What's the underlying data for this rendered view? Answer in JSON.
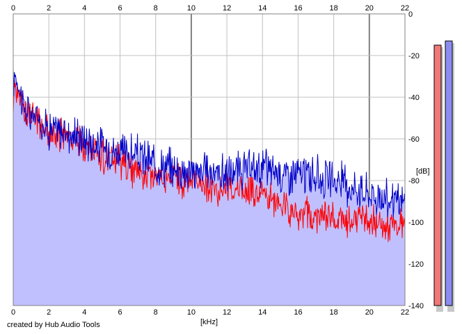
{
  "chart_data": {
    "type": "area",
    "credit": "created by Hub Audio Tools",
    "xlabel": "[kHz]",
    "ylabel": "[dB]",
    "xlim": [
      0,
      22
    ],
    "ylim": [
      -140,
      0
    ],
    "x_ticks": [
      "0",
      "2",
      "4",
      "6",
      "8",
      "10",
      "12",
      "14",
      "16",
      "18",
      "20",
      "22"
    ],
    "y_ticks": [
      "0",
      "-20",
      "-40",
      "-60",
      "-80",
      "-100",
      "-120",
      "-140"
    ],
    "grid": true,
    "colors": {
      "fill": "#c0c0ff",
      "blue_line": "#0000c8",
      "red_line": "#ff0000",
      "grid": "#c0c0c0",
      "major_grid": "#808080",
      "meter_left": "#f07878",
      "meter_right": "#8c8cf0"
    },
    "series": [
      {
        "color": "blue",
        "x": [
          0.0,
          0.1,
          0.3,
          0.6,
          1.0,
          1.3,
          1.6,
          2.0,
          2.5,
          3.0,
          3.5,
          4.0,
          4.5,
          5.0,
          5.5,
          6.0,
          6.5,
          7.0,
          7.5,
          8.0,
          8.5,
          9.0,
          9.5,
          10.0,
          10.5,
          11.0,
          11.5,
          12.0,
          12.5,
          13.0,
          13.5,
          14.0,
          14.5,
          15.0,
          15.5,
          16.0,
          16.5,
          17.0,
          17.5,
          18.0,
          18.5,
          19.0,
          19.5,
          20.0,
          20.5,
          21.0,
          21.5,
          22.0
        ],
        "values": [
          -35,
          -28,
          -33,
          -45,
          -50,
          -48,
          -52,
          -55,
          -56,
          -57,
          -58,
          -60,
          -62,
          -63,
          -65,
          -66,
          -67,
          -68,
          -70,
          -72,
          -73,
          -74,
          -75,
          -76,
          -76,
          -75,
          -76,
          -77,
          -76,
          -75,
          -75,
          -73,
          -75,
          -76,
          -77,
          -77,
          -77,
          -78,
          -79,
          -80,
          -81,
          -83,
          -84,
          -86,
          -88,
          -89,
          -90,
          -91
        ]
      },
      {
        "color": "red",
        "x": [
          0.0,
          0.1,
          0.3,
          0.6,
          1.0,
          1.3,
          1.6,
          2.0,
          2.5,
          3.0,
          3.5,
          4.0,
          4.5,
          5.0,
          5.5,
          6.0,
          6.5,
          7.0,
          7.5,
          8.0,
          8.5,
          9.0,
          9.5,
          10.0,
          10.5,
          11.0,
          11.5,
          12.0,
          12.5,
          13.0,
          13.5,
          14.0,
          14.5,
          15.0,
          15.5,
          16.0,
          16.5,
          17.0,
          17.5,
          18.0,
          18.5,
          19.0,
          19.5,
          20.0,
          20.5,
          21.0,
          21.5,
          22.0
        ],
        "values": [
          -42,
          -34,
          -36,
          -46,
          -50,
          -50,
          -54,
          -57,
          -58,
          -59,
          -60,
          -63,
          -66,
          -68,
          -70,
          -72,
          -74,
          -76,
          -77,
          -78,
          -79,
          -79,
          -80,
          -81,
          -82,
          -83,
          -84,
          -84,
          -84,
          -85,
          -86,
          -87,
          -89,
          -92,
          -94,
          -95,
          -96,
          -97,
          -98,
          -99,
          -99,
          -99,
          -100,
          -100,
          -101,
          -101,
          -101,
          -101
        ]
      }
    ],
    "level_meters": [
      {
        "color": "red",
        "top_db": -15
      },
      {
        "color": "blue",
        "top_db": -13
      }
    ]
  }
}
